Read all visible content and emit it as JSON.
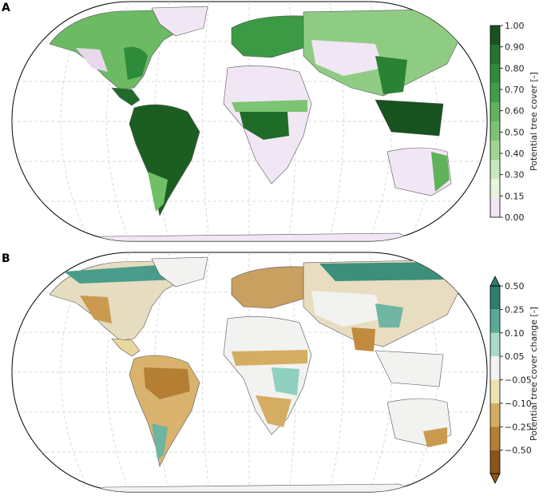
{
  "panels": [
    {
      "label": "A",
      "colorbar": {
        "title": "Potential tree cover [-]",
        "ticks": [
          "1.00",
          "0.90",
          "0.80",
          "0.70",
          "0.60",
          "0.50",
          "0.40",
          "0.30",
          "0.15",
          "0.00"
        ],
        "colors": [
          "#18521f",
          "#23752f",
          "#2e8b3c",
          "#3f9e48",
          "#5fb35b",
          "#7cc472",
          "#a0d593",
          "#c7e8bd",
          "#e6f4e0",
          "#f1e6f4"
        ]
      }
    },
    {
      "label": "B",
      "colorbar": {
        "title": "Potential tree cover change [-]",
        "ticks": [
          "0.50",
          "0.25",
          "0.10",
          "0.05",
          "−0.05",
          "−0.10",
          "−0.25",
          "−0.50"
        ],
        "colors": [
          "#2e7d6e",
          "#5aa896",
          "#a9d9cb",
          "#f2f2f0",
          "#ede3b0",
          "#d4ad63",
          "#b57f33",
          "#8a5618"
        ],
        "extend": "both"
      }
    }
  ]
}
